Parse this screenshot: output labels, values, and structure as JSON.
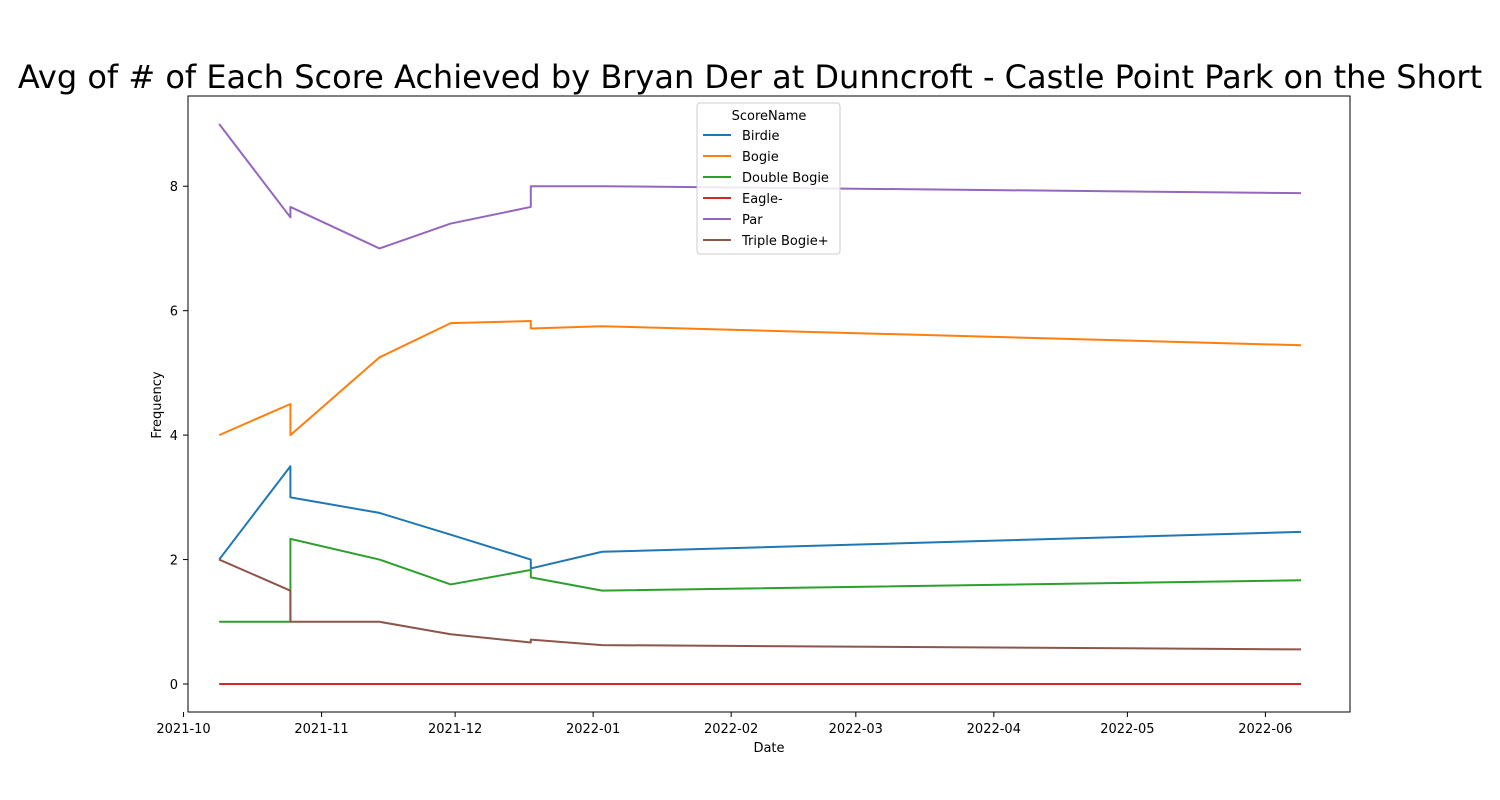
{
  "chart_data": {
    "type": "line",
    "title": "Avg of # of Each Score Achieved by Bryan Der at Dunncroft - Castle Point Park on the Short",
    "xlabel": "Date",
    "ylabel": "Frequency",
    "x_ticks": [
      "2021-10",
      "2021-11",
      "2021-12",
      "2022-01",
      "2022-02",
      "2022-03",
      "2022-04",
      "2022-05",
      "2022-06"
    ],
    "y_ticks": [
      0,
      2,
      4,
      6,
      8
    ],
    "ylim": [
      -0.45,
      9.45
    ],
    "xlim": [
      "2021-10-02",
      "2022-06-20"
    ],
    "grid": false,
    "legend": {
      "title": "ScoreName",
      "placement": "upper center"
    },
    "series": [
      {
        "name": "Birdie",
        "color": "#1f77b4",
        "points": [
          [
            "2021-10-09",
            2
          ],
          [
            "2021-10-25",
            3.5
          ],
          [
            "2021-10-25",
            3.0
          ],
          [
            "2021-11-14",
            2.75
          ],
          [
            "2021-11-30",
            2.4
          ],
          [
            "2021-12-18",
            2.0
          ],
          [
            "2021-12-18",
            1.857
          ],
          [
            "2022-01-03",
            2.125
          ],
          [
            "2022-06-09",
            2.444
          ]
        ]
      },
      {
        "name": "Bogie",
        "color": "#ff7f0e",
        "points": [
          [
            "2021-10-09",
            4
          ],
          [
            "2021-10-25",
            4.5
          ],
          [
            "2021-10-25",
            4.0
          ],
          [
            "2021-11-14",
            5.25
          ],
          [
            "2021-11-30",
            5.8
          ],
          [
            "2021-12-18",
            5.833
          ],
          [
            "2021-12-18",
            5.714
          ],
          [
            "2022-01-03",
            5.75
          ],
          [
            "2022-06-09",
            5.444
          ]
        ]
      },
      {
        "name": "Double Bogie",
        "color": "#2ca02c",
        "points": [
          [
            "2021-10-09",
            1
          ],
          [
            "2021-10-25",
            1.0
          ],
          [
            "2021-10-25",
            2.333
          ],
          [
            "2021-11-14",
            2.0
          ],
          [
            "2021-11-30",
            1.6
          ],
          [
            "2021-12-18",
            1.833
          ],
          [
            "2021-12-18",
            1.714
          ],
          [
            "2022-01-03",
            1.5
          ],
          [
            "2022-06-09",
            1.667
          ]
        ]
      },
      {
        "name": "Eagle-",
        "color": "#d62728",
        "points": [
          [
            "2021-10-09",
            0
          ],
          [
            "2022-06-09",
            0
          ]
        ]
      },
      {
        "name": "Par",
        "color": "#9467bd",
        "points": [
          [
            "2021-10-09",
            9
          ],
          [
            "2021-10-25",
            7.5
          ],
          [
            "2021-10-25",
            7.667
          ],
          [
            "2021-11-14",
            7.0
          ],
          [
            "2021-11-30",
            7.4
          ],
          [
            "2021-12-18",
            7.667
          ],
          [
            "2021-12-18",
            8.0
          ],
          [
            "2022-01-03",
            8.0
          ],
          [
            "2022-06-09",
            7.889
          ]
        ]
      },
      {
        "name": "Triple Bogie+",
        "color": "#8c564b",
        "points": [
          [
            "2021-10-09",
            2
          ],
          [
            "2021-10-25",
            1.5
          ],
          [
            "2021-10-25",
            1.0
          ],
          [
            "2021-11-14",
            1.0
          ],
          [
            "2021-11-30",
            0.8
          ],
          [
            "2021-12-18",
            0.667
          ],
          [
            "2021-12-18",
            0.714
          ],
          [
            "2022-01-03",
            0.625
          ],
          [
            "2022-06-09",
            0.556
          ]
        ]
      }
    ]
  }
}
